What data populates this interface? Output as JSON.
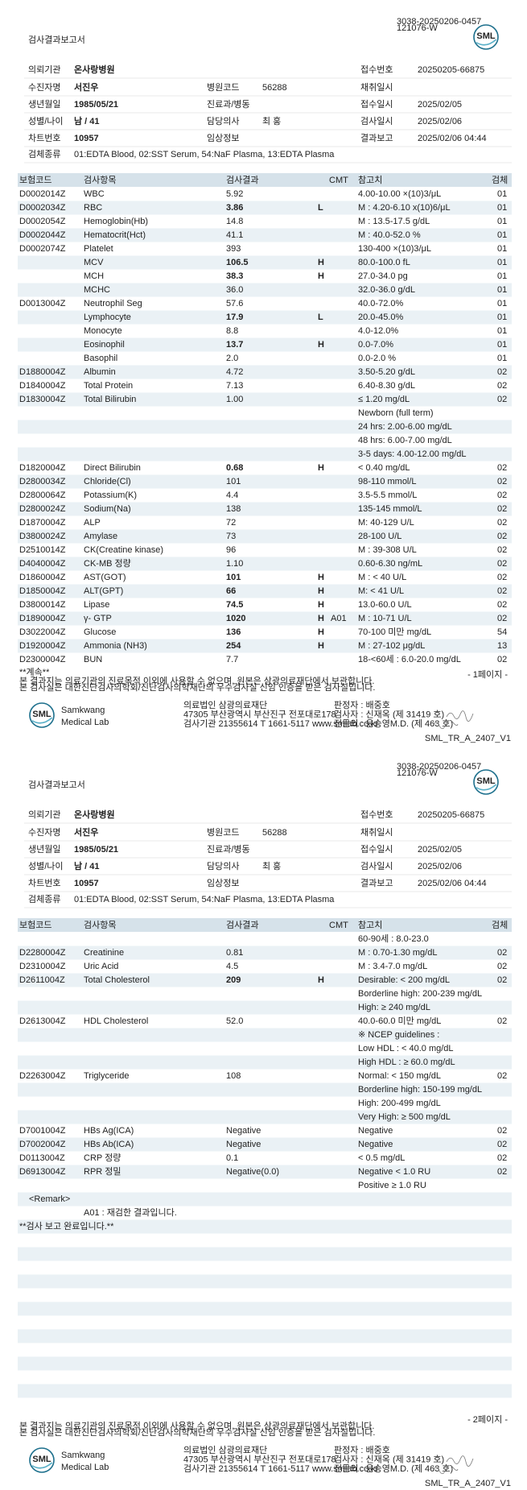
{
  "pages": [
    {
      "header": {
        "title": "검사결과보고서",
        "barcode_id": "3038-20250206-0457",
        "barcode_sub": "121076-W",
        "logo": "SML"
      },
      "info": [
        [
          "의뢰기관",
          "온사랑병원",
          null,
          null,
          "접수번호",
          "20250205-66875"
        ],
        [
          "수진자명",
          "서진우",
          "병원코드",
          "56288",
          "채취일시",
          null
        ],
        [
          "생년월일",
          "1985/05/21",
          "진료과/병동",
          null,
          "접수일시",
          "2025/02/05"
        ],
        [
          "성별/나이",
          "남 / 41",
          "담당의사",
          "최 홍",
          "검사일시",
          "2025/02/06"
        ],
        [
          "차트번호",
          "10957",
          "임상정보",
          null,
          "결과보고",
          "2025/02/06 04:44"
        ],
        [
          "검체종류",
          "01:EDTA Blood, 02:SST Serum, 54:NaF Plasma, 13:EDTA Plasma"
        ]
      ],
      "table": {
        "columns": [
          "보험코드",
          "검사항목",
          "검사결과",
          "CMT",
          "참고치",
          "검체"
        ],
        "rows": [
          [
            "D0002014Z",
            "WBC",
            "5.92",
            null,
            null,
            "4.00-10.00 ×(10)3/μL",
            "01"
          ],
          [
            "D0002034Z",
            "RBC",
            "3.86",
            "L",
            null,
            "M : 4.20-6.10 x(10)6/μL",
            "01"
          ],
          [
            "D0002054Z",
            "Hemoglobin(Hb)",
            "14.8",
            null,
            null,
            "M : 13.5-17.5 g/dL",
            "01"
          ],
          [
            "D0002044Z",
            "Hematocrit(Hct)",
            "41.1",
            null,
            null,
            "M : 40.0-52.0 %",
            "01"
          ],
          [
            "D0002074Z",
            "Platelet",
            "393",
            null,
            null,
            "130-400 ×(10)3/μL",
            "01"
          ],
          [
            null,
            "MCV",
            "106.5",
            "H",
            null,
            "80.0-100.0 fL",
            "01"
          ],
          [
            null,
            "MCH",
            "38.3",
            "H",
            null,
            "27.0-34.0 pg",
            "01"
          ],
          [
            null,
            "MCHC",
            "36.0",
            null,
            null,
            "32.0-36.0 g/dL",
            "01"
          ],
          [
            "D0013004Z",
            "Neutrophil Seg",
            "57.6",
            null,
            null,
            "40.0-72.0%",
            "01"
          ],
          [
            null,
            "Lymphocyte",
            "17.9",
            "L",
            null,
            "20.0-45.0%",
            "01"
          ],
          [
            null,
            "Monocyte",
            "8.8",
            null,
            null,
            "4.0-12.0%",
            "01"
          ],
          [
            null,
            "Eosinophil",
            "13.7",
            "H",
            null,
            "0.0-7.0%",
            "01"
          ],
          [
            null,
            "Basophil",
            "2.0",
            null,
            null,
            "0.0-2.0 %",
            "01"
          ],
          [
            "D1880004Z",
            "Albumin",
            "4.72",
            null,
            null,
            "3.50-5.20 g/dL",
            "02"
          ],
          [
            "D1840004Z",
            "Total Protein",
            "7.13",
            null,
            null,
            "6.40-8.30 g/dL",
            "02"
          ],
          [
            "D1830004Z",
            "Total Bilirubin",
            "1.00",
            null,
            null,
            "≤ 1.20 mg/dL",
            "02"
          ],
          [
            null,
            null,
            null,
            null,
            null,
            "Newborn (full term)",
            null
          ],
          [
            null,
            null,
            null,
            null,
            null,
            "24 hrs: 2.00-6.00 mg/dL",
            null
          ],
          [
            null,
            null,
            null,
            null,
            null,
            "48 hrs: 6.00-7.00 mg/dL",
            null
          ],
          [
            null,
            null,
            null,
            null,
            null,
            "3-5 days: 4.00-12.00 mg/dL",
            null
          ],
          [
            "D1820004Z",
            "Direct Bilirubin",
            "0.68",
            "H",
            null,
            "< 0.40 mg/dL",
            "02"
          ],
          [
            "D2800034Z",
            "Chloride(Cl)",
            "101",
            null,
            null,
            "98-110 mmol/L",
            "02"
          ],
          [
            "D2800064Z",
            "Potassium(K)",
            "4.4",
            null,
            null,
            "3.5-5.5 mmol/L",
            "02"
          ],
          [
            "D2800024Z",
            "Sodium(Na)",
            "138",
            null,
            null,
            "135-145 mmol/L",
            "02"
          ],
          [
            "D1870004Z",
            "ALP",
            "72",
            null,
            null,
            "M: 40-129 U/L",
            "02"
          ],
          [
            "D3800024Z",
            "Amylase",
            "73",
            null,
            null,
            "28-100 U/L",
            "02"
          ],
          [
            "D2510014Z",
            "CK(Creatine kinase)",
            "96",
            null,
            null,
            "M : 39-308 U/L",
            "02"
          ],
          [
            "D4040004Z",
            "CK-MB 정량",
            "1.10",
            null,
            null,
            "0.60-6.30 ng/mL",
            "02"
          ],
          [
            "D1860004Z",
            "AST(GOT)",
            "101",
            "H",
            null,
            "M : < 40 U/L",
            "02"
          ],
          [
            "D1850004Z",
            "ALT(GPT)",
            "66",
            "H",
            null,
            "M: < 41 U/L",
            "02"
          ],
          [
            "D3800014Z",
            "Lipase",
            "74.5",
            "H",
            null,
            "13.0-60.0 U/L",
            "02"
          ],
          [
            "D1890004Z",
            "γ- GTP",
            "1020",
            "H",
            "A01",
            "M : 10-71 U/L",
            "02"
          ],
          [
            "D3022004Z",
            "Glucose",
            "136",
            "H",
            null,
            "70-100 미만 mg/dL",
            "54"
          ],
          [
            "D1920004Z",
            "Ammonia (NH3)",
            "254",
            "H",
            null,
            "M : 27-102 μg/dL",
            "13"
          ],
          [
            "D2300004Z",
            "BUN",
            "7.7",
            null,
            null,
            "18-<60세 : 6.0-20.0 mg/dL",
            "02"
          ]
        ]
      },
      "continuation": "**계속**",
      "page_label": "- 1페이지 -",
      "notes": [
        "본 결과지는 의료기관의 진료목적 이외에 사용할 수 없으며, 원본은 삼광의료재단에서 보관합니다.",
        "본 검사실은 대한진단검사의학회/진단검사의학재단의 우수검사실 신임 인증을 받은 검사실입니다."
      ],
      "footer": {
        "logo": "SML",
        "brand": [
          "Samkwang",
          "Medical Lab"
        ],
        "org": [
          "의료법인 삼광의료재단",
          "47305 부산광역시 부산진구 전포대로178",
          "검사기관 21355614 T 1661-5117 www.smlab.co.kr"
        ],
        "signers": [
          "판정자 : 배중호",
          "검사자 : 신재옥 (제 31419 호)",
          "전문의 : 윤승영M.D. (제 463 호)"
        ],
        "form_code": "SML_TR_A_2407_V1"
      }
    },
    {
      "header": {
        "title": "검사결과보고서",
        "barcode_id": "3038-20250206-0457",
        "barcode_sub": "121076-W",
        "logo": "SML"
      },
      "info": [
        [
          "의뢰기관",
          "온사랑병원",
          null,
          null,
          "접수번호",
          "20250205-66875"
        ],
        [
          "수진자명",
          "서진우",
          "병원코드",
          "56288",
          "채취일시",
          null
        ],
        [
          "생년월일",
          "1985/05/21",
          "진료과/병동",
          null,
          "접수일시",
          "2025/02/05"
        ],
        [
          "성별/나이",
          "남 / 41",
          "담당의사",
          "최 홍",
          "검사일시",
          "2025/02/06"
        ],
        [
          "차트번호",
          "10957",
          "임상정보",
          null,
          "결과보고",
          "2025/02/06 04:44"
        ],
        [
          "검체종류",
          "01:EDTA Blood, 02:SST Serum, 54:NaF Plasma, 13:EDTA Plasma"
        ]
      ],
      "table": {
        "columns": [
          "보험코드",
          "검사항목",
          "검사결과",
          "CMT",
          "참고치",
          "검체"
        ],
        "rows": [
          [
            null,
            null,
            null,
            null,
            null,
            "60-90세 : 8.0-23.0",
            null
          ],
          [
            "D2280004Z",
            "Creatinine",
            "0.81",
            null,
            null,
            "M : 0.70-1.30 mg/dL",
            "02"
          ],
          [
            "D2310004Z",
            "Uric Acid",
            "4.5",
            null,
            null,
            "M : 3.4-7.0 mg/dL",
            "02"
          ],
          [
            "D2611004Z",
            "Total Cholesterol",
            "209",
            "H",
            null,
            "Desirable: < 200 mg/dL",
            "02"
          ],
          [
            null,
            null,
            null,
            null,
            null,
            "Borderline high: 200-239 mg/dL",
            null
          ],
          [
            null,
            null,
            null,
            null,
            null,
            "High: ≥ 240 mg/dL",
            null
          ],
          [
            "D2613004Z",
            "HDL Cholesterol",
            "52.0",
            null,
            null,
            "40.0-60.0 미만 mg/dL",
            "02"
          ],
          [
            null,
            null,
            null,
            null,
            null,
            "※ NCEP guidelines :",
            null
          ],
          [
            null,
            null,
            null,
            null,
            null,
            "Low HDL : < 40.0 mg/dL",
            null
          ],
          [
            null,
            null,
            null,
            null,
            null,
            "High HDL : ≥ 60.0 mg/dL",
            null
          ],
          [
            "D2263004Z",
            "Triglyceride",
            "108",
            null,
            null,
            "Normal: < 150 mg/dL",
            "02"
          ],
          [
            null,
            null,
            null,
            null,
            null,
            "Borderline high: 150-199 mg/dL",
            null
          ],
          [
            null,
            null,
            null,
            null,
            null,
            "High: 200-499 mg/dL",
            null
          ],
          [
            null,
            null,
            null,
            null,
            null,
            "Very High: ≥ 500 mg/dL",
            null
          ],
          [
            "D7001004Z",
            "HBs Ag(ICA)",
            "Negative",
            null,
            null,
            "Negative",
            "02"
          ],
          [
            "D7002004Z",
            "HBs Ab(ICA)",
            "Negative",
            null,
            null,
            "Negative",
            "02"
          ],
          [
            "D0113004Z",
            "CRP 정량",
            "0.1",
            null,
            null,
            "< 0.5 mg/dL",
            "02"
          ],
          [
            "D6913004Z",
            "RPR 정밀",
            "Negative(0.0)",
            null,
            null,
            "Negative < 1.0 RU",
            "02"
          ],
          [
            null,
            null,
            null,
            null,
            null,
            "Positive ≥ 1.0 RU",
            null
          ]
        ]
      },
      "remarks": {
        "heading": "<Remark>",
        "items": [
          "A01 : 재검한 결과입니다."
        ],
        "end": "**검사 보고 완료입니다.**"
      },
      "page_label": "- 2페이지 -",
      "notes": [
        "본 결과지는 의료기관의 진료목적 이외에 사용할 수 없으며, 원본은 삼광의료재단에서 보관합니다.",
        "본 검사실은 대한진단검사의학회/진단검사의학재단의 우수검사실 신임 인증을 받은 검사실입니다."
      ],
      "footer": {
        "logo": "SML",
        "brand": [
          "Samkwang",
          "Medical Lab"
        ],
        "org": [
          "의료법인 삼광의료재단",
          "47305 부산광역시 부산진구 전포대로178",
          "검사기관 21355614 T 1661-5117 www.smlab.co.kr"
        ],
        "signers": [
          "판정자 : 배중호",
          "검사자 : 신재옥 (제 31419 호)",
          "전문의 : 윤승영M.D. (제 463 호)"
        ],
        "form_code": "SML_TR_A_2407_V1"
      }
    }
  ]
}
